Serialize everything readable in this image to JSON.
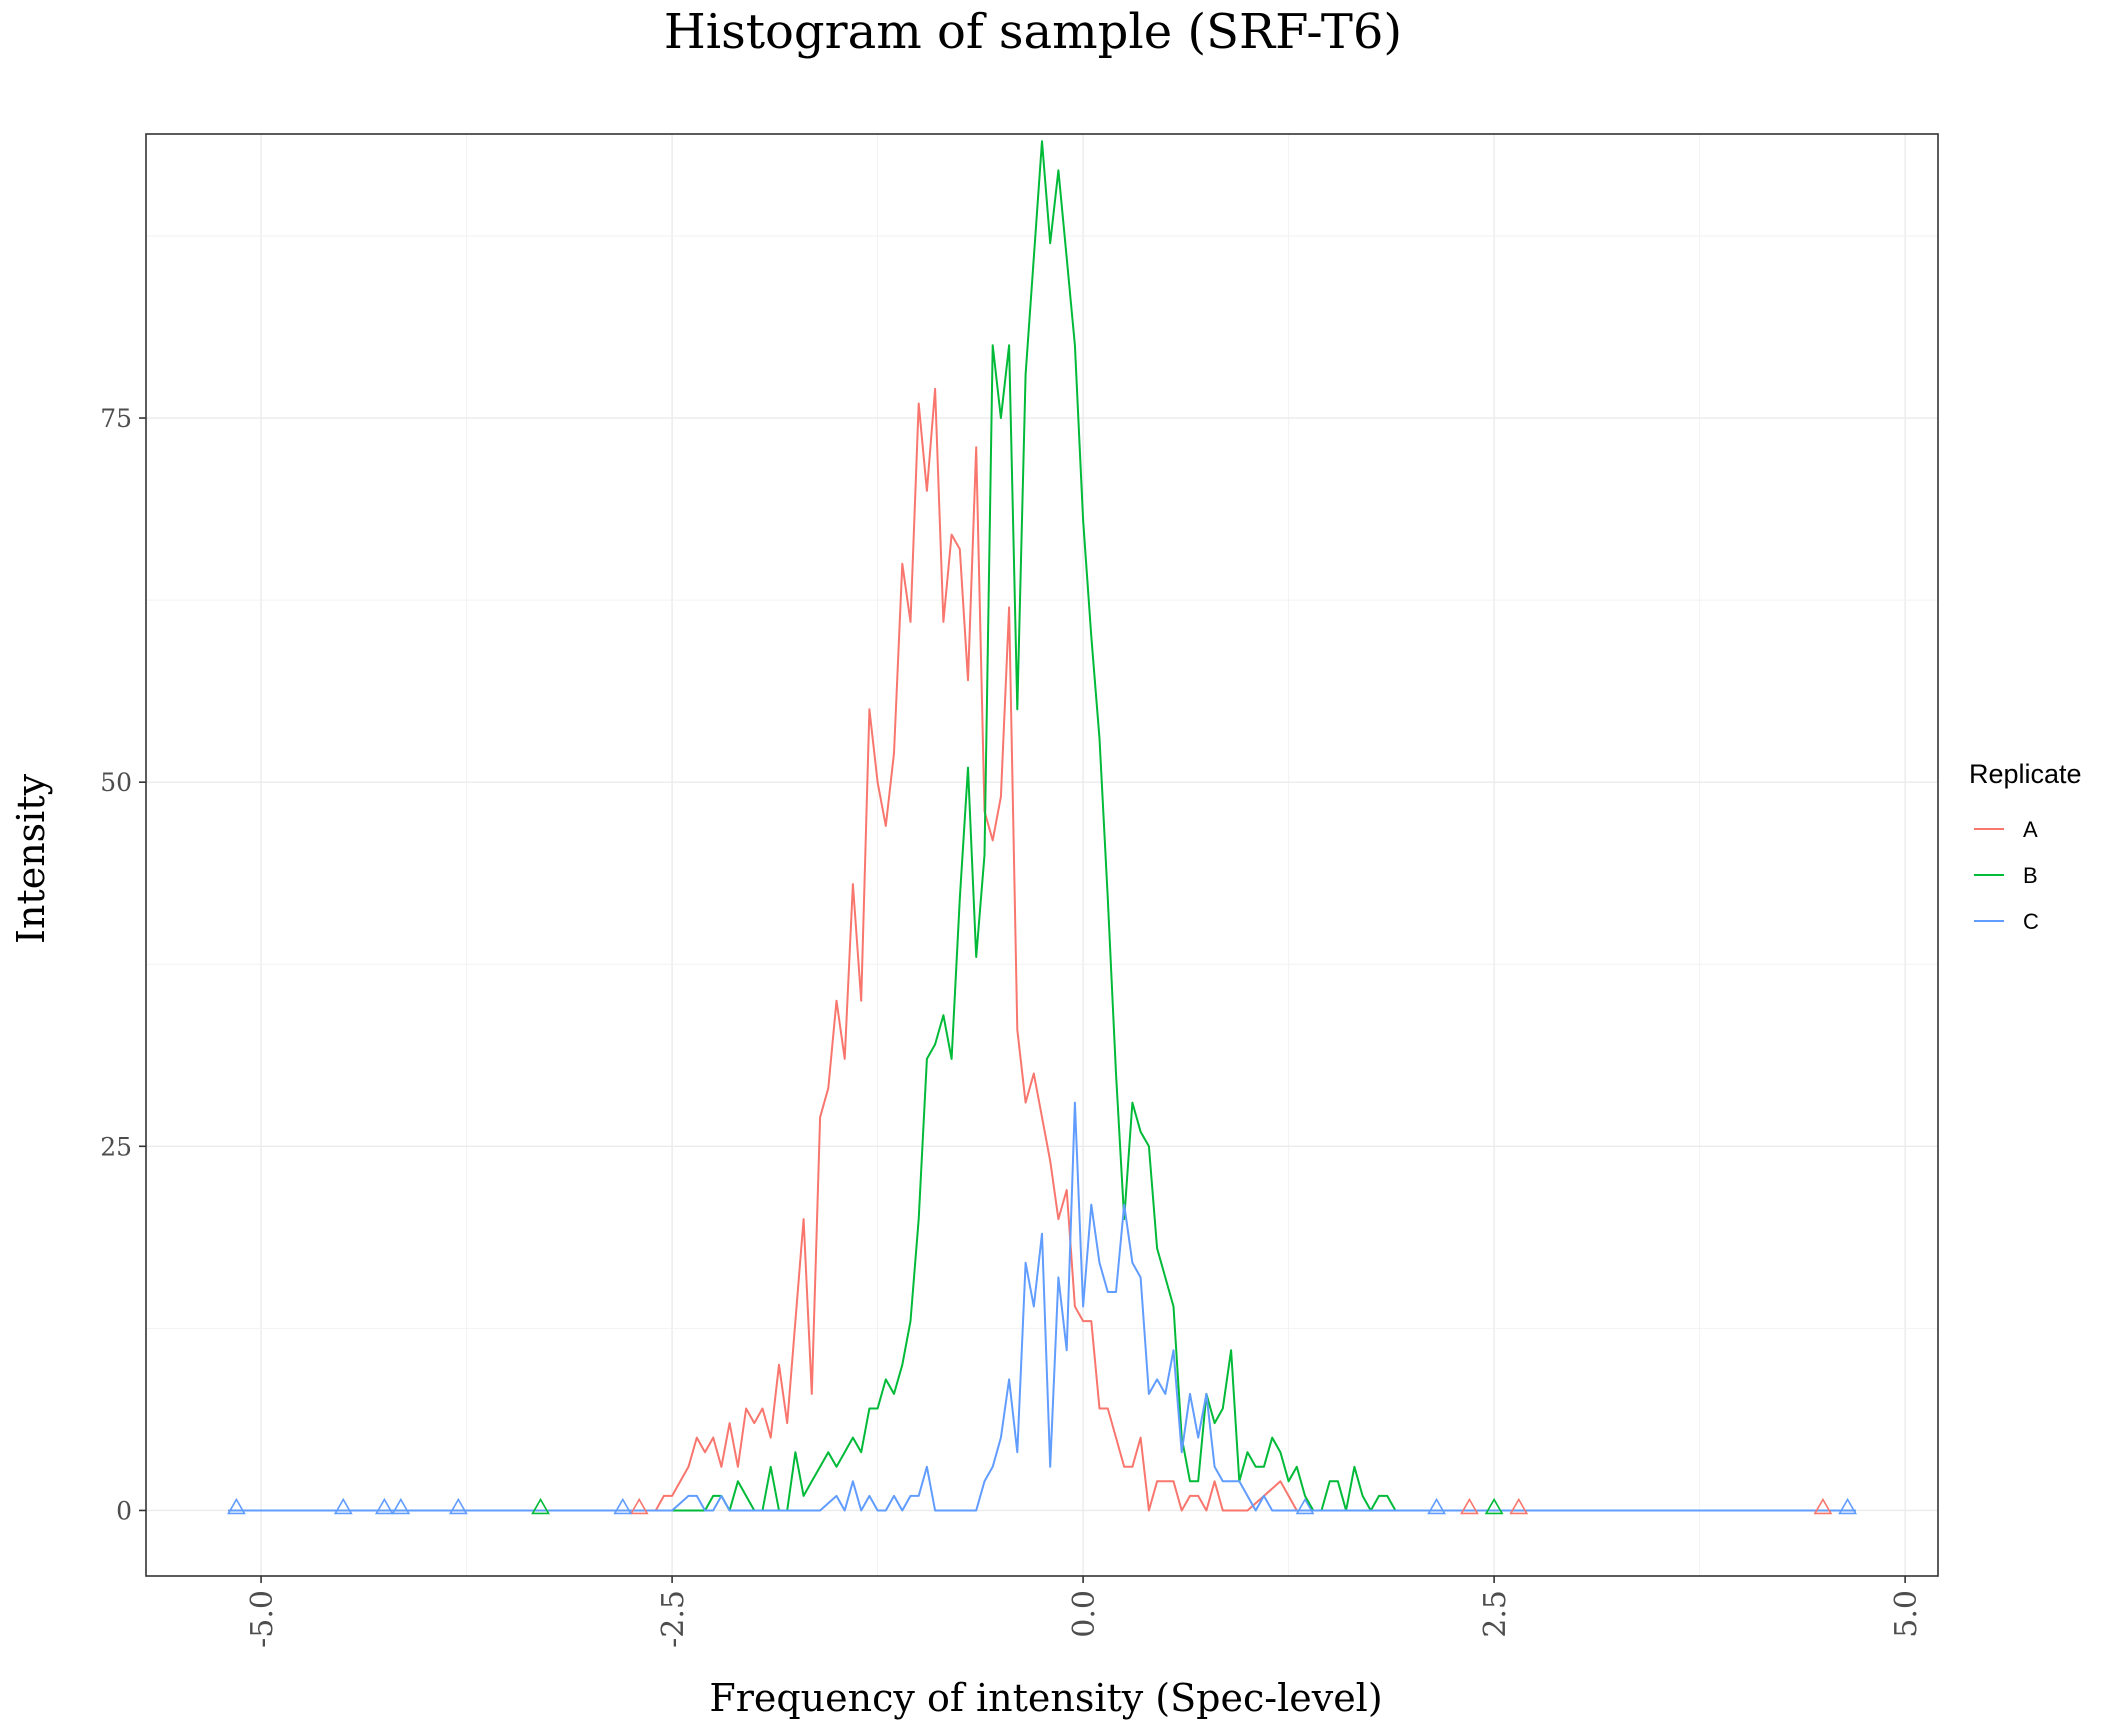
{
  "chart_data": {
    "type": "line",
    "title": "Histogram of sample (SRF-T6)",
    "xlabel": "Frequency of intensity (Spec-level)",
    "ylabel": "Intensity",
    "xlim": [
      -5.7,
      5.2
    ],
    "ylim": [
      -4.5,
      94.5
    ],
    "x_ticks": [
      -5.0,
      -2.5,
      0.0,
      2.5,
      5.0
    ],
    "x_tick_labels": [
      "-5.0",
      "-2.5",
      "0.0",
      "2.5",
      "5.0"
    ],
    "y_ticks": [
      0,
      25,
      50,
      75
    ],
    "y_tick_labels": [
      "0",
      "25",
      "50",
      "75"
    ],
    "grid": true,
    "legend": {
      "title": "Replicate",
      "position": "right"
    },
    "series": [
      {
        "name": "A",
        "color": "#F8766D",
        "x": [
          -5.2,
          -2.8,
          -2.6,
          -2.55,
          -2.5,
          -2.45,
          -2.4,
          -2.35,
          -2.3,
          -2.25,
          -2.2,
          -2.15,
          -2.1,
          -2.05,
          -2.0,
          -1.95,
          -1.9,
          -1.85,
          -1.8,
          -1.75,
          -1.7,
          -1.65,
          -1.6,
          -1.55,
          -1.5,
          -1.45,
          -1.4,
          -1.35,
          -1.3,
          -1.25,
          -1.2,
          -1.15,
          -1.1,
          -1.05,
          -1.0,
          -0.95,
          -0.9,
          -0.85,
          -0.8,
          -0.75,
          -0.7,
          -0.65,
          -0.6,
          -0.55,
          -0.5,
          -0.45,
          -0.4,
          -0.35,
          -0.3,
          -0.25,
          -0.2,
          -0.15,
          -0.1,
          -0.05,
          0.0,
          0.05,
          0.1,
          0.15,
          0.2,
          0.25,
          0.3,
          0.35,
          0.4,
          0.45,
          0.5,
          0.55,
          0.6,
          0.65,
          0.7,
          0.75,
          0.8,
          0.85,
          0.9,
          1.0,
          1.2,
          1.3,
          4.7
        ],
        "y": [
          0,
          0,
          0,
          1,
          1,
          2,
          3,
          5,
          4,
          5,
          3,
          6,
          3,
          7,
          6,
          7,
          5,
          10,
          6,
          13,
          20,
          8,
          27,
          29,
          35,
          31,
          43,
          35,
          55,
          50,
          47,
          52,
          65,
          61,
          76,
          70,
          77,
          61,
          67,
          66,
          57,
          73,
          48,
          46,
          49,
          62,
          33,
          28,
          30,
          27,
          24,
          20,
          22,
          14,
          13,
          13,
          7,
          7,
          5,
          3,
          3,
          5,
          0,
          2,
          2,
          2,
          0,
          1,
          1,
          0,
          2,
          0,
          0,
          0,
          2,
          0,
          0
        ]
      },
      {
        "name": "B",
        "color": "#00BA38",
        "x": [
          -5.2,
          -2.4,
          -2.3,
          -2.25,
          -2.2,
          -2.15,
          -2.1,
          -2.05,
          -2.0,
          -1.95,
          -1.9,
          -1.85,
          -1.8,
          -1.75,
          -1.7,
          -1.65,
          -1.6,
          -1.55,
          -1.5,
          -1.45,
          -1.4,
          -1.35,
          -1.3,
          -1.25,
          -1.2,
          -1.15,
          -1.1,
          -1.05,
          -1.0,
          -0.95,
          -0.9,
          -0.85,
          -0.8,
          -0.75,
          -0.7,
          -0.65,
          -0.6,
          -0.55,
          -0.5,
          -0.45,
          -0.4,
          -0.35,
          -0.3,
          -0.25,
          -0.2,
          -0.15,
          -0.1,
          -0.05,
          0.0,
          0.05,
          0.1,
          0.15,
          0.2,
          0.25,
          0.3,
          0.35,
          0.4,
          0.45,
          0.5,
          0.55,
          0.6,
          0.65,
          0.7,
          0.75,
          0.8,
          0.85,
          0.9,
          0.95,
          1.0,
          1.05,
          1.1,
          1.15,
          1.2,
          1.25,
          1.3,
          1.35,
          1.4,
          1.45,
          1.5,
          1.55,
          1.6,
          1.65,
          1.7,
          1.75,
          1.8,
          1.85,
          1.9,
          1.95,
          2.0,
          2.1,
          4.7
        ],
        "y": [
          0,
          0,
          0,
          1,
          1,
          0,
          2,
          1,
          0,
          0,
          3,
          0,
          0,
          4,
          1,
          2,
          3,
          4,
          3,
          4,
          5,
          4,
          7,
          7,
          9,
          8,
          10,
          13,
          20,
          31,
          32,
          34,
          31,
          42,
          51,
          38,
          45,
          80,
          75,
          80,
          55,
          78,
          86,
          94,
          87,
          92,
          86,
          80,
          68,
          60,
          53,
          42,
          30,
          20,
          28,
          26,
          25,
          18,
          16,
          14,
          5,
          2,
          2,
          8,
          6,
          7,
          11,
          2,
          4,
          3,
          3,
          5,
          4,
          2,
          3,
          1,
          0,
          0,
          2,
          2,
          0,
          3,
          1,
          0,
          1,
          1,
          0,
          0,
          0,
          0,
          0
        ]
      },
      {
        "name": "C",
        "color": "#619CFF",
        "x": [
          -5.2,
          -2.5,
          -2.4,
          -2.35,
          -2.3,
          -2.25,
          -2.2,
          -2.15,
          -2.1,
          -2.05,
          -2.0,
          -1.95,
          -1.9,
          -1.6,
          -1.5,
          -1.45,
          -1.4,
          -1.35,
          -1.3,
          -1.25,
          -1.2,
          -1.15,
          -1.1,
          -1.05,
          -1.0,
          -0.95,
          -0.9,
          -0.85,
          -0.8,
          -0.65,
          -0.6,
          -0.55,
          -0.5,
          -0.45,
          -0.4,
          -0.35,
          -0.3,
          -0.25,
          -0.2,
          -0.15,
          -0.1,
          -0.05,
          0.0,
          0.05,
          0.1,
          0.15,
          0.2,
          0.25,
          0.3,
          0.35,
          0.4,
          0.45,
          0.5,
          0.55,
          0.6,
          0.65,
          0.7,
          0.75,
          0.8,
          0.85,
          0.9,
          0.95,
          1.0,
          1.05,
          1.1,
          1.15,
          1.2,
          1.3,
          4.7
        ],
        "y": [
          0,
          0,
          1,
          1,
          0,
          0,
          1,
          0,
          0,
          0,
          0,
          0,
          0,
          0,
          1,
          0,
          2,
          0,
          1,
          0,
          0,
          1,
          0,
          1,
          1,
          3,
          0,
          0,
          0,
          0,
          2,
          3,
          5,
          9,
          4,
          17,
          14,
          19,
          3,
          16,
          11,
          28,
          14,
          21,
          17,
          15,
          15,
          21,
          17,
          16,
          8,
          9,
          8,
          11,
          4,
          8,
          5,
          8,
          3,
          2,
          2,
          2,
          1,
          0,
          1,
          0,
          0,
          0,
          0
        ]
      }
    ],
    "zero_markers": {
      "A": [
        -2.7,
        2.35,
        2.65,
        4.5
      ],
      "B": [
        -3.3,
        2.5
      ],
      "C": [
        -5.15,
        -4.5,
        -4.25,
        -4.15,
        -3.8,
        -2.8,
        1.35,
        2.15,
        4.65
      ]
    }
  }
}
